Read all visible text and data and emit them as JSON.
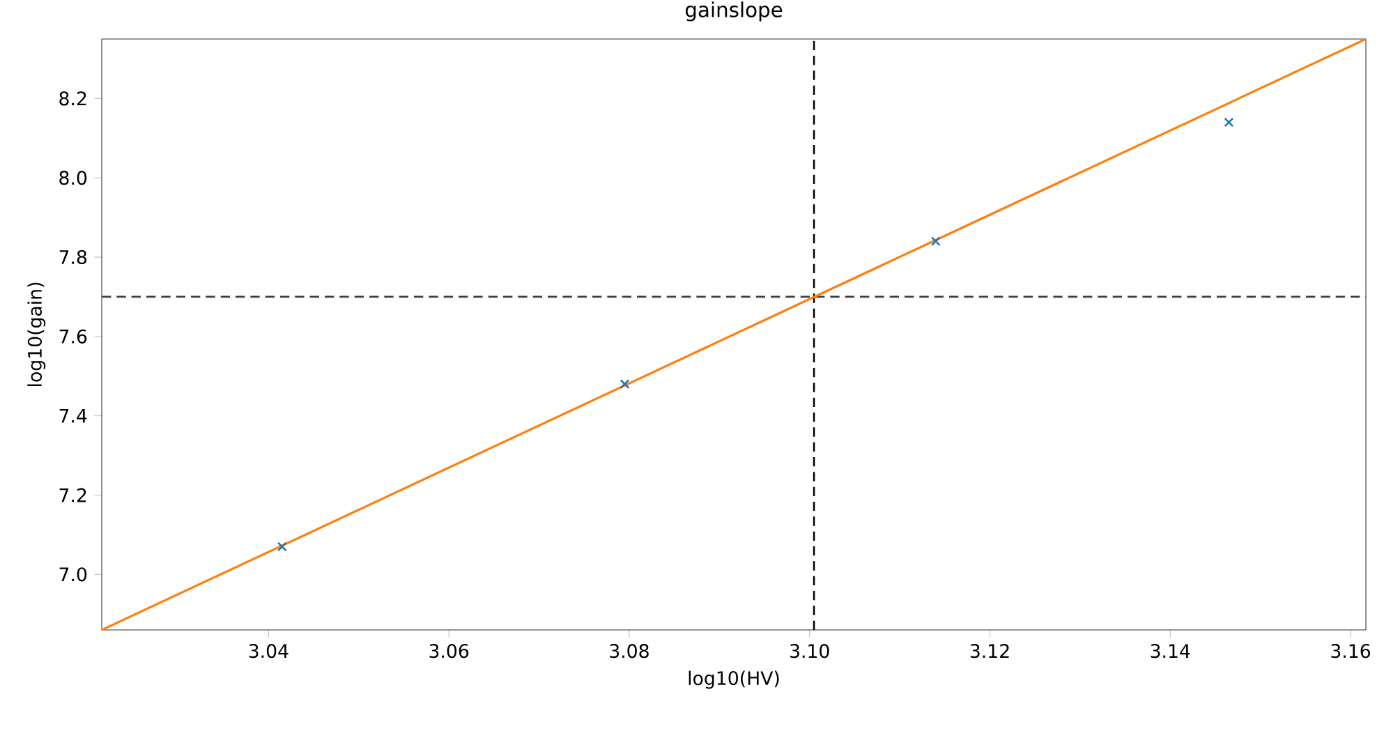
{
  "chart_data": {
    "type": "scatter",
    "title": "gainslope",
    "xlabel": "log10(HV)",
    "ylabel": "log10(gain)",
    "xlim": [
      3.0215,
      3.1617
    ],
    "ylim": [
      6.86,
      8.35
    ],
    "xticks": [
      3.04,
      3.06,
      3.08,
      {
        "value": 3.1,
        "label": "3.10"
      },
      3.12,
      3.14,
      3.16
    ],
    "yticks": [
      {
        "value": 7,
        "label": "7.0"
      },
      7.2,
      7.4,
      7.6,
      7.8,
      {
        "value": 8,
        "label": "8.0"
      },
      8.2
    ],
    "series": [
      {
        "color": "#1f77b4",
        "marker": "cross",
        "x": [
          3.0415,
          3.0795,
          3.114,
          3.1465
        ],
        "values": [
          7.07,
          7.48,
          7.84,
          8.14
        ]
      },
      {
        "type": "line",
        "color": "#ff7f0e",
        "marker": "none",
        "line_style": "solid",
        "x": [
          3.0215,
          3.1617
        ],
        "values": [
          6.86,
          8.35
        ]
      }
    ],
    "ref_lines": [
      {
        "axis": "x",
        "value": 3.1005,
        "color": "#000000",
        "line_style": "dashed"
      },
      {
        "axis": "y",
        "value": 7.7,
        "color": "#404040",
        "line_style": "dashed"
      }
    ]
  }
}
